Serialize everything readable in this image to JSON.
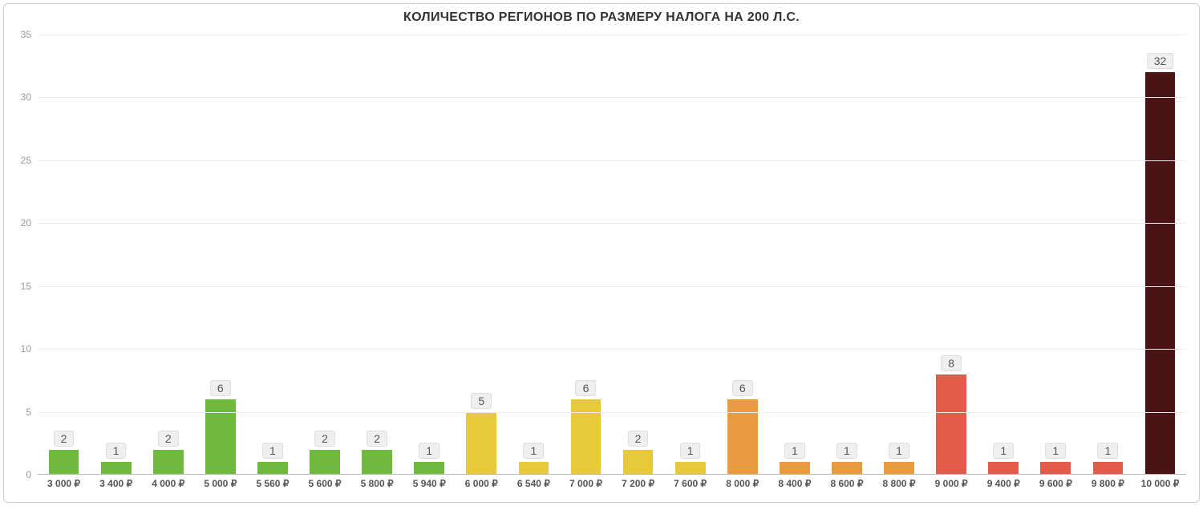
{
  "chart": {
    "type": "bar",
    "title": "КОЛИЧЕСТВО РЕГИОНОВ ПО РАЗМЕРУ НАЛОГА НА 200 Л.С.",
    "title_fontsize": 16,
    "title_color": "#333333",
    "background_color": "#ffffff",
    "border_color": "#cccccc",
    "grid_color": "#eeeeee",
    "axis_color": "#bbbbbb",
    "ylim": [
      0,
      35
    ],
    "ytick_step": 5,
    "yticks": [
      0,
      5,
      10,
      15,
      20,
      25,
      30,
      35
    ],
    "ytick_color": "#999999",
    "ytick_fontsize": 12,
    "xlabel_color": "#555555",
    "xlabel_fontsize": 12,
    "xlabel_fontweight": 700,
    "value_label_bg": "#efefef",
    "value_label_border": "#dddddd",
    "value_label_color": "#555555",
    "value_label_fontsize": 14,
    "bar_width_ratio": 0.58,
    "categories": [
      "3 000 ₽",
      "3 400 ₽",
      "4 000 ₽",
      "5 000 ₽",
      "5 560 ₽",
      "5 600 ₽",
      "5 800 ₽",
      "5 940 ₽",
      "6 000 ₽",
      "6 540 ₽",
      "7 000 ₽",
      "7 200 ₽",
      "7 600 ₽",
      "8 000 ₽",
      "8 400 ₽",
      "8 600 ₽",
      "8 800 ₽",
      "9 000 ₽",
      "9 400 ₽",
      "9 600 ₽",
      "9 800 ₽",
      "10 000 ₽"
    ],
    "values": [
      2,
      1,
      2,
      6,
      1,
      2,
      2,
      1,
      5,
      1,
      6,
      2,
      1,
      6,
      1,
      1,
      1,
      8,
      1,
      1,
      1,
      32
    ],
    "bar_colors": [
      "#6fb93f",
      "#6fb93f",
      "#6fb93f",
      "#6fb93f",
      "#6fb93f",
      "#6fb93f",
      "#6fb93f",
      "#6fb93f",
      "#e9c93c",
      "#e9c93c",
      "#e9c93c",
      "#e9c93c",
      "#e9c93c",
      "#ea9a3f",
      "#ea9a3f",
      "#ea9a3f",
      "#ea9a3f",
      "#e35b4a",
      "#e35b4a",
      "#e35b4a",
      "#e35b4a",
      "#4a1414"
    ]
  }
}
